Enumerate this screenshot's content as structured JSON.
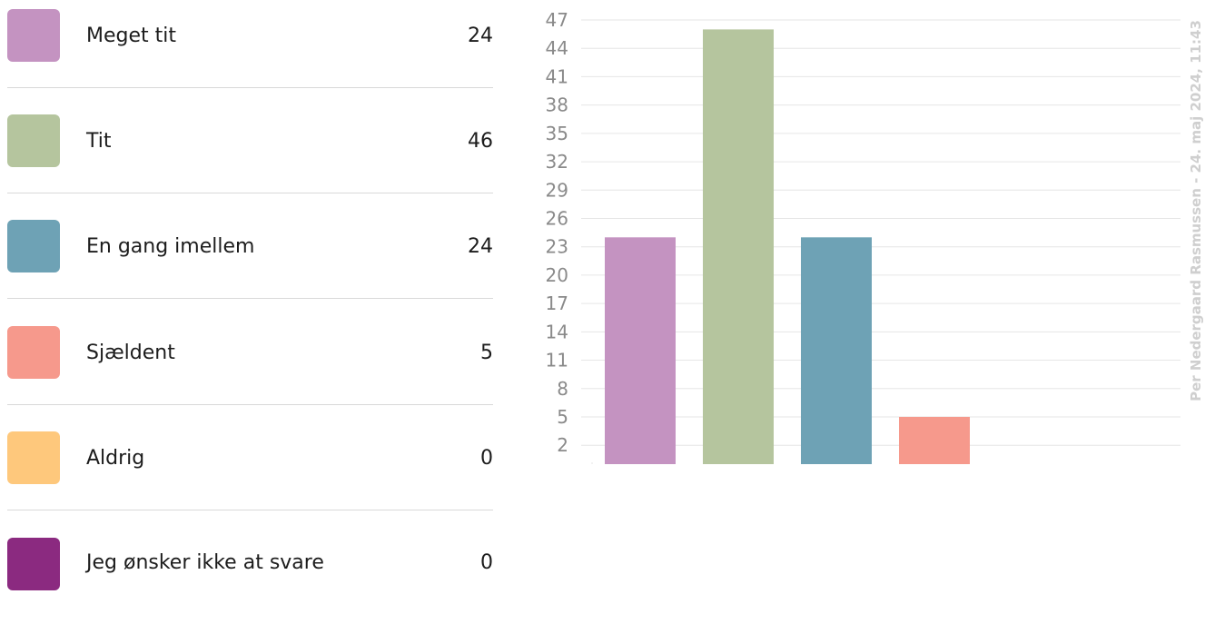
{
  "legend": {
    "items": [
      {
        "label": "Meget tit",
        "count": "24",
        "color": "#c493c1"
      },
      {
        "label": "Tit",
        "count": "46",
        "color": "#b5c59e"
      },
      {
        "label": "En gang imellem",
        "count": "24",
        "color": "#6ea2b5"
      },
      {
        "label": "Sjældent",
        "count": "5",
        "color": "#f6998c"
      },
      {
        "label": "Aldrig",
        "count": "0",
        "color": "#fec87c"
      },
      {
        "label": "Jeg ønsker ikke at svare",
        "count": "0",
        "color": "#8b2a80"
      }
    ]
  },
  "credit": "Per Nedergaard Rasmussen - 24. maj 2024, 11:43",
  "chart_data": {
    "type": "bar",
    "categories": [
      "Meget tit",
      "Tit",
      "En gang imellem",
      "Sjældent",
      "Aldrig",
      "Jeg ønsker ikke at svare"
    ],
    "values": [
      24,
      46,
      24,
      5,
      0,
      0
    ],
    "colors": [
      "#c493c1",
      "#b5c59e",
      "#6ea2b5",
      "#f6998c",
      "#fec87c",
      "#8b2a80"
    ],
    "yticks": [
      2,
      5,
      8,
      11,
      14,
      17,
      20,
      23,
      26,
      29,
      32,
      35,
      38,
      41,
      44,
      47
    ],
    "ylim": [
      0,
      47
    ],
    "grid": true,
    "title": "",
    "xlabel": "",
    "ylabel": ""
  }
}
